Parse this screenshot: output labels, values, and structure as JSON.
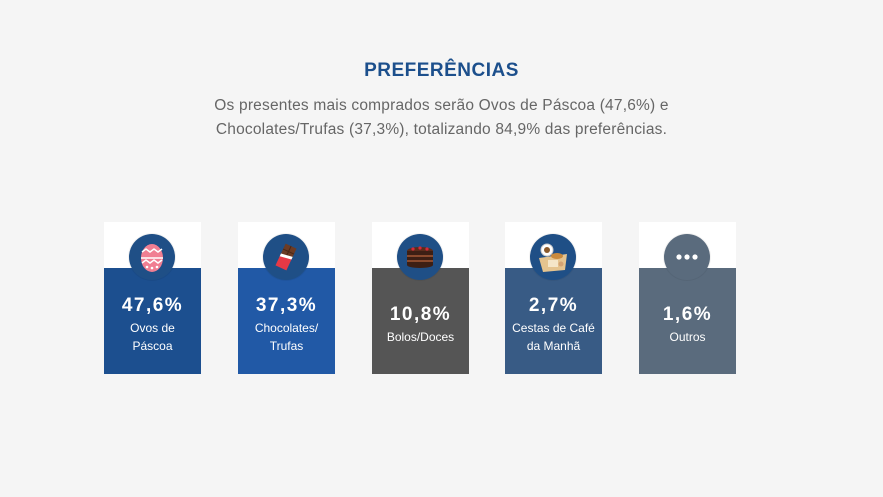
{
  "header": {
    "title": "PREFERÊNCIAS",
    "subtitle_line1": "Os presentes mais comprados serão Ovos de Páscoa (47,6%) e",
    "subtitle_line2": "Chocolates/Trufas (37,3%), totalizando 84,9% das preferências."
  },
  "cards": [
    {
      "pct": "47,6%",
      "label1": "Ovos de",
      "label2": "Páscoa",
      "icon": "easter-egg-icon",
      "color": "#1c4f8f"
    },
    {
      "pct": "37,3%",
      "label1": "Chocolates/",
      "label2": "Trufas",
      "icon": "chocolate-bar-icon",
      "color": "#2159a6"
    },
    {
      "pct": "10,8%",
      "label1": "Bolos/Doces",
      "label2": "",
      "icon": "cake-icon",
      "color": "#555555"
    },
    {
      "pct": "2,7%",
      "label1": "Cestas de Café",
      "label2": "da Manhã",
      "icon": "breakfast-basket-icon",
      "color": "#385b85"
    },
    {
      "pct": "1,6%",
      "label1": "Outros",
      "label2": "",
      "icon": "more-dots-icon",
      "color": "#5a6b7d"
    }
  ]
}
